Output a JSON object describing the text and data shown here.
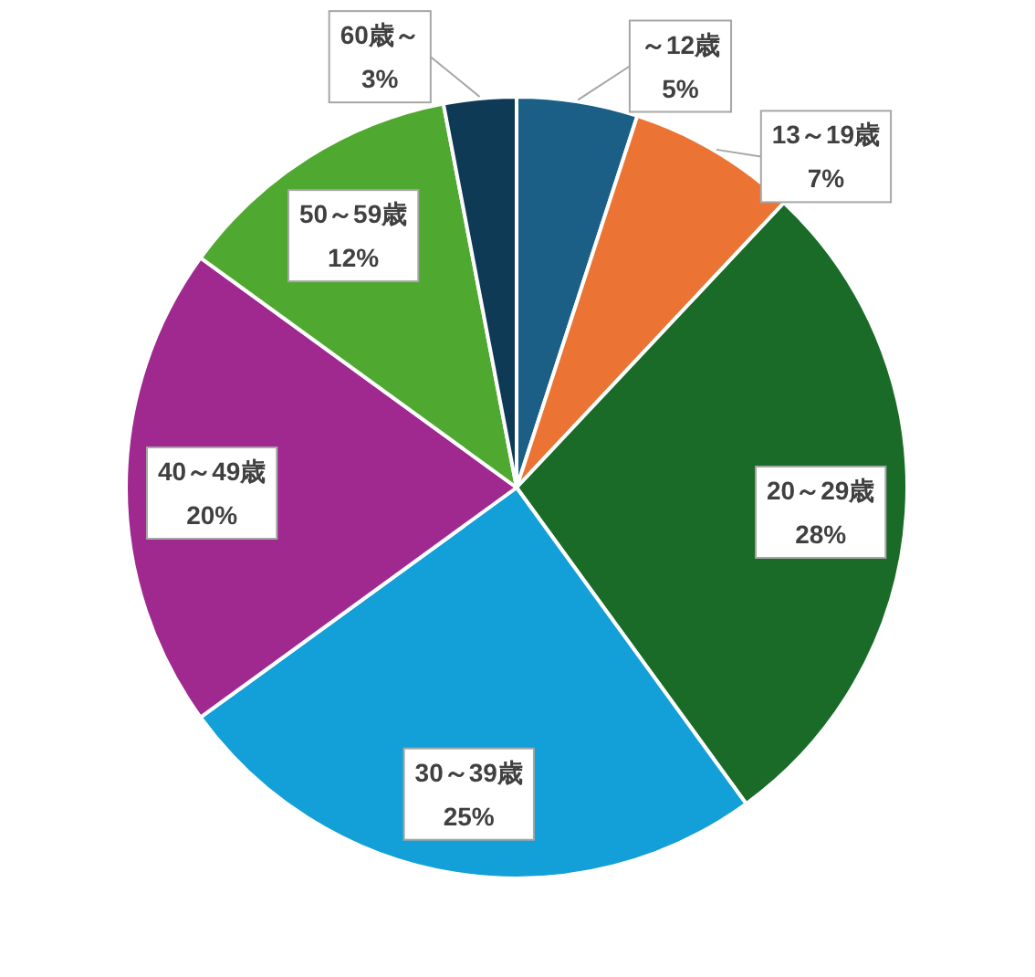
{
  "chart_data": {
    "type": "pie",
    "categories": [
      "～12歳",
      "13～19歳",
      "20～29歳",
      "30～39歳",
      "40～49歳",
      "50～59歳",
      "60歳～"
    ],
    "values": [
      5,
      7,
      28,
      25,
      20,
      12,
      3
    ],
    "colors": [
      "#1b5e86",
      "#eb7434",
      "#1a6b27",
      "#139fd8",
      "#a0298f",
      "#4fa82f",
      "#0f3a56"
    ],
    "value_labels": [
      "5%",
      "7%",
      "28%",
      "25%",
      "20%",
      "12%",
      "3%"
    ]
  }
}
